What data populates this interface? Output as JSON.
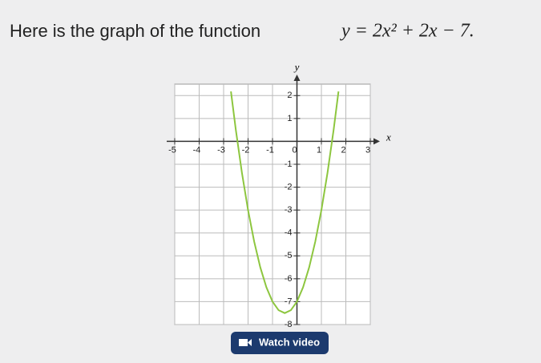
{
  "title": "Here is the graph of the function",
  "equation": "y = 2x² + 2x − 7.",
  "button": "Watch video",
  "chart_data": {
    "type": "line",
    "xlabel": "x",
    "ylabel": "y",
    "series": [
      {
        "name": "y = 2x² + 2x − 7",
        "color": "#8dc63f",
        "x": [
          -2.7,
          -2.5,
          -2.25,
          -2,
          -1.75,
          -1.5,
          -1.25,
          -1,
          -0.75,
          -0.5,
          -0.25,
          0,
          0.25,
          0.5,
          0.75,
          1,
          1.25,
          1.5,
          1.7
        ],
        "values": [
          2.18,
          0.5,
          -1.375,
          -3,
          -4.375,
          -5.5,
          -6.375,
          -7,
          -7.375,
          -7.5,
          -7.375,
          -7,
          -6.375,
          -5.5,
          -4.375,
          -3,
          -1.375,
          0.5,
          2.18
        ]
      }
    ],
    "xlim": [
      -5,
      3
    ],
    "ylim": [
      -8,
      2.5
    ],
    "xticks": [
      -5,
      -4,
      -3,
      -2,
      -1,
      0,
      1,
      2,
      3
    ],
    "yticks": [
      -8,
      -7,
      -6,
      -5,
      -4,
      -3,
      -2,
      -1,
      1,
      2
    ],
    "grid": true
  }
}
